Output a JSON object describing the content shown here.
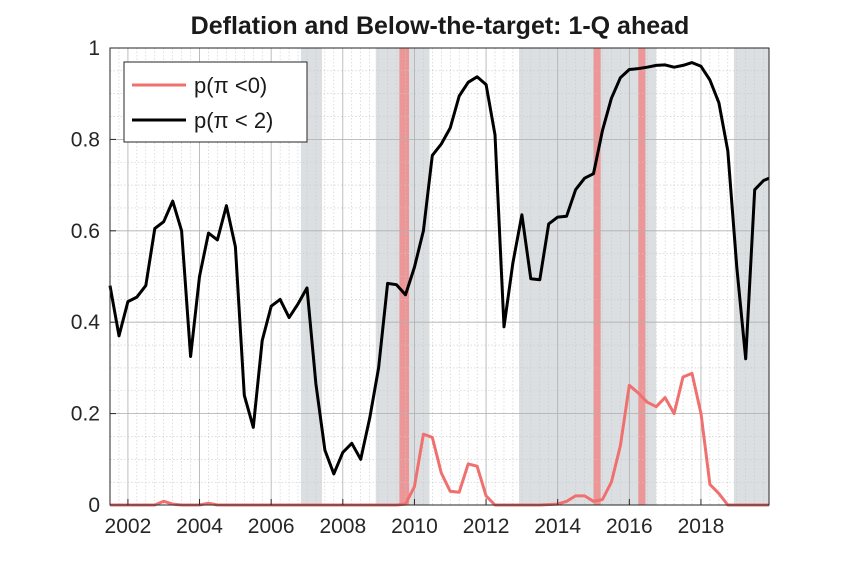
{
  "chart_data": {
    "type": "line",
    "title": "Deflation and Below-the-target: 1-Q ahead",
    "xlabel": "",
    "ylabel": "",
    "xlim": [
      2001.5,
      2019.9
    ],
    "ylim": [
      0,
      1
    ],
    "xticks": [
      2002,
      2004,
      2006,
      2008,
      2010,
      2012,
      2014,
      2016,
      2018
    ],
    "xtick_labels": [
      "2002",
      "2004",
      "2006",
      "2008",
      "2010",
      "2012",
      "2014",
      "2016",
      "2018"
    ],
    "yticks": [
      0,
      0.2,
      0.4,
      0.6,
      0.8,
      1
    ],
    "ytick_labels": [
      "0",
      "0.2",
      "0.4",
      "0.6",
      "0.8",
      "1"
    ],
    "grid": true,
    "legend_position": "top-left",
    "colors": {
      "grey_band": "#cfd4d8",
      "red_band": "#f08a8a"
    },
    "grey_bands": [
      [
        2006.83,
        2007.42
      ],
      [
        2008.92,
        2010.42
      ],
      [
        2012.92,
        2016.75
      ],
      [
        2018.92,
        2019.9
      ]
    ],
    "red_bands": [
      [
        2009.58,
        2009.85
      ],
      [
        2015.0,
        2015.2
      ],
      [
        2016.25,
        2016.45
      ]
    ],
    "series": [
      {
        "name": "p(π <0)",
        "color": "#f07070",
        "x": [
          2001.5,
          2001.75,
          2002.0,
          2002.25,
          2002.5,
          2002.75,
          2003.0,
          2003.25,
          2003.5,
          2003.75,
          2004.0,
          2004.25,
          2004.5,
          2004.75,
          2005.0,
          2005.5,
          2006.0,
          2006.5,
          2007.0,
          2007.5,
          2008.0,
          2008.5,
          2009.0,
          2009.25,
          2009.5,
          2009.75,
          2010.0,
          2010.25,
          2010.5,
          2010.75,
          2011.0,
          2011.25,
          2011.5,
          2011.75,
          2012.0,
          2012.25,
          2012.5,
          2013.0,
          2013.5,
          2014.0,
          2014.25,
          2014.5,
          2014.75,
          2015.0,
          2015.25,
          2015.5,
          2015.75,
          2016.0,
          2016.25,
          2016.5,
          2016.75,
          2017.0,
          2017.25,
          2017.5,
          2017.75,
          2018.0,
          2018.25,
          2018.5,
          2018.75,
          2019.0,
          2019.25,
          2019.5,
          2019.75,
          2019.9
        ],
        "y": [
          0.0,
          0.0,
          0.0,
          0.0,
          0.0,
          0.0,
          0.008,
          0.002,
          0.0,
          0.0,
          0.0,
          0.004,
          0.0,
          0.0,
          0.0,
          0.0,
          0.0,
          0.0,
          0.0,
          0.0,
          0.0,
          0.0,
          0.0,
          0.0,
          0.0,
          0.002,
          0.04,
          0.155,
          0.148,
          0.07,
          0.03,
          0.028,
          0.09,
          0.085,
          0.02,
          0.0,
          0.0,
          0.0,
          0.0,
          0.002,
          0.008,
          0.02,
          0.02,
          0.008,
          0.012,
          0.05,
          0.13,
          0.262,
          0.245,
          0.225,
          0.215,
          0.235,
          0.2,
          0.28,
          0.288,
          0.2,
          0.045,
          0.025,
          0.0,
          0.0,
          0.0,
          0.0,
          0.0,
          0.0
        ]
      },
      {
        "name": "p(π < 2)",
        "color": "#000000",
        "x": [
          2001.5,
          2001.75,
          2002.0,
          2002.25,
          2002.5,
          2002.75,
          2003.0,
          2003.25,
          2003.5,
          2003.75,
          2004.0,
          2004.25,
          2004.5,
          2004.75,
          2005.0,
          2005.25,
          2005.5,
          2005.75,
          2006.0,
          2006.25,
          2006.5,
          2006.75,
          2007.0,
          2007.25,
          2007.5,
          2007.75,
          2008.0,
          2008.25,
          2008.5,
          2008.75,
          2009.0,
          2009.25,
          2009.5,
          2009.75,
          2010.0,
          2010.25,
          2010.5,
          2010.75,
          2011.0,
          2011.25,
          2011.5,
          2011.75,
          2012.0,
          2012.25,
          2012.5,
          2012.75,
          2013.0,
          2013.25,
          2013.5,
          2013.75,
          2014.0,
          2014.25,
          2014.5,
          2014.75,
          2015.0,
          2015.25,
          2015.5,
          2015.75,
          2016.0,
          2016.25,
          2016.5,
          2016.75,
          2017.0,
          2017.25,
          2017.5,
          2017.75,
          2018.0,
          2018.25,
          2018.5,
          2018.75,
          2019.0,
          2019.25,
          2019.5,
          2019.75,
          2019.9
        ],
        "y": [
          0.48,
          0.37,
          0.445,
          0.455,
          0.48,
          0.605,
          0.62,
          0.665,
          0.6,
          0.325,
          0.5,
          0.595,
          0.58,
          0.655,
          0.565,
          0.24,
          0.17,
          0.36,
          0.435,
          0.45,
          0.41,
          0.44,
          0.475,
          0.265,
          0.12,
          0.068,
          0.115,
          0.135,
          0.1,
          0.19,
          0.3,
          0.485,
          0.482,
          0.46,
          0.52,
          0.6,
          0.765,
          0.79,
          0.825,
          0.895,
          0.925,
          0.937,
          0.92,
          0.81,
          0.39,
          0.53,
          0.635,
          0.495,
          0.493,
          0.615,
          0.63,
          0.632,
          0.69,
          0.715,
          0.725,
          0.82,
          0.89,
          0.935,
          0.953,
          0.955,
          0.958,
          0.962,
          0.963,
          0.958,
          0.962,
          0.968,
          0.96,
          0.93,
          0.88,
          0.775,
          0.52,
          0.32,
          0.69,
          0.71,
          0.715
        ]
      }
    ]
  }
}
